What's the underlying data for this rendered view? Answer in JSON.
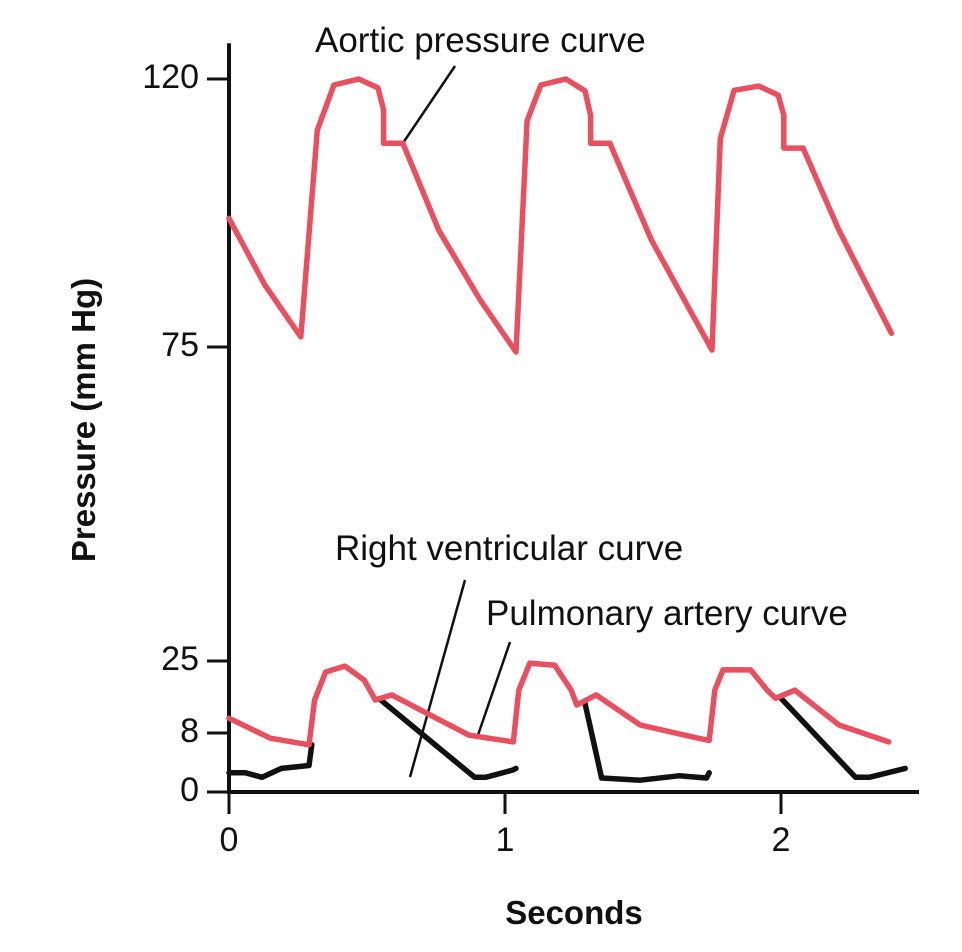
{
  "chart_data": {
    "type": "line",
    "xlabel": "Seconds",
    "ylabel": "Pressure (mm Hg)",
    "xlim": [
      0,
      2.5
    ],
    "xticks": [
      0,
      1,
      2
    ],
    "ylim": [
      0,
      126
    ],
    "yticks": [
      0,
      8,
      25,
      75,
      120
    ],
    "series": [
      {
        "name": "Right ventricular curve",
        "color": "#111111",
        "x": [
          0,
          0.06,
          0.12,
          0.19,
          0.29,
          0.3,
          0.53,
          0.55,
          0.89,
          0.93,
          1.03,
          1.04,
          1.25,
          1.29,
          1.35,
          1.49,
          1.63,
          1.73,
          1.74,
          1.98,
          2.0,
          2.27,
          2.32,
          2.45
        ],
        "values": [
          2.6,
          2.6,
          2,
          3.2,
          3.6,
          6.4,
          null,
          15.8,
          2,
          2,
          3,
          3.2,
          null,
          15,
          1.9,
          1.6,
          2.2,
          1.9,
          2.6,
          null,
          16.2,
          2,
          2,
          3.2
        ]
      },
      {
        "name": "Pulmonary artery curve",
        "color": "#e8505f",
        "x": [
          0,
          0.15,
          0.29,
          0.31,
          0.35,
          0.42,
          0.49,
          0.53,
          0.59,
          0.73,
          0.87,
          1.03,
          1.05,
          1.09,
          1.18,
          1.24,
          1.26,
          1.33,
          1.49,
          1.7,
          1.74,
          1.76,
          1.79,
          1.89,
          1.95,
          1.98,
          2.05,
          2.21,
          2.39
        ],
        "values": [
          11.5,
          7.3,
          6.4,
          15.8,
          22.4,
          23.8,
          20.5,
          15.8,
          17,
          12.2,
          7.7,
          6.8,
          18.1,
          24.5,
          24,
          18.1,
          14.6,
          17,
          9.9,
          7.3,
          7,
          18.1,
          22.9,
          22.9,
          18.1,
          16.2,
          18.1,
          9.9,
          6.8
        ]
      },
      {
        "name": "Aortic pressure curve",
        "color": "#e8505f",
        "x": [
          0,
          0.13,
          0.26,
          0.32,
          0.38,
          0.47,
          0.54,
          0.56,
          0.56,
          0.63,
          0.76,
          0.91,
          1.04,
          1.08,
          1.13,
          1.22,
          1.29,
          1.31,
          1.31,
          1.38,
          1.53,
          1.67,
          1.75,
          1.78,
          1.83,
          1.92,
          1.99,
          2.01,
          2.01,
          2.08,
          2.21,
          2.4
        ],
        "values": [
          96.6,
          85.4,
          76.7,
          111.4,
          119,
          120,
          118.5,
          114.8,
          109.2,
          109.2,
          94.6,
          82.9,
          74.2,
          113,
          119,
          120,
          118,
          113.9,
          109.2,
          109.2,
          93,
          81.2,
          74.5,
          110,
          118.1,
          118.8,
          117.3,
          113.9,
          108.4,
          108.4,
          94.6,
          77.3
        ]
      }
    ]
  }
}
